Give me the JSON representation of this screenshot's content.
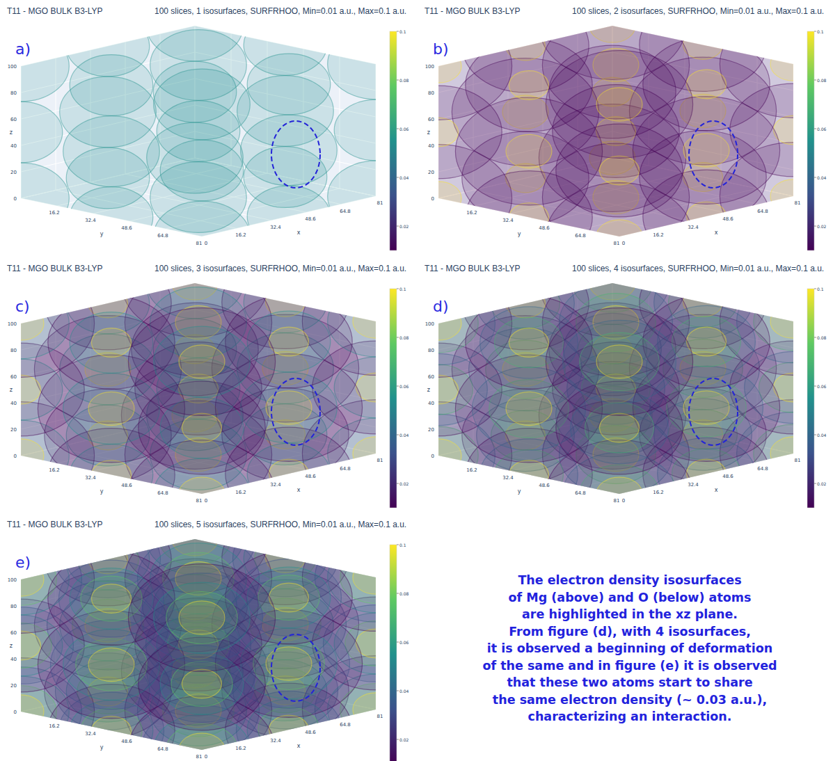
{
  "chart_data": [
    {
      "type": "isosurface",
      "panel": "a)",
      "title": "T11 - MGO BULK B3-LYP",
      "subtitle": "100 slices, 1 isosurfaces, SURFRHOO, Min=0.01 a.u., Max=0.1 a.u.",
      "xlabel": "x",
      "ylabel": "y",
      "zlabel": "z",
      "xlim": [
        0,
        81
      ],
      "xticks": [
        0,
        16.2,
        32.4,
        48.6,
        64.8,
        81
      ],
      "ylim": [
        0,
        81
      ],
      "yticks": [
        16.2,
        32.4,
        48.6,
        64.8,
        81
      ],
      "zlim": [
        0,
        100
      ],
      "zticks": [
        0,
        20,
        40,
        60,
        80,
        100
      ],
      "isosurface_levels": [
        0.055
      ],
      "colorbar": {
        "range": [
          0.01,
          0.1
        ],
        "ticks": [
          0.02,
          0.04,
          0.06,
          0.08,
          0.1
        ]
      }
    },
    {
      "type": "isosurface",
      "panel": "b)",
      "title": "T11 - MGO BULK B3-LYP",
      "subtitle": "100 slices, 2 isosurfaces, SURFRHOO, Min=0.01 a.u., Max=0.1 a.u.",
      "xlabel": "x",
      "ylabel": "y",
      "zlabel": "z",
      "xlim": [
        0,
        81
      ],
      "xticks": [
        0,
        16.2,
        32.4,
        48.6,
        64.8,
        81
      ],
      "ylim": [
        0,
        81
      ],
      "yticks": [
        16.2,
        32.4,
        48.6,
        64.8,
        81
      ],
      "zlim": [
        0,
        100
      ],
      "zticks": [
        0,
        20,
        40,
        60,
        80,
        100
      ],
      "isosurface_levels": [
        0.01,
        0.1
      ],
      "colorbar": {
        "range": [
          0.01,
          0.1
        ],
        "ticks": [
          0.02,
          0.04,
          0.06,
          0.08,
          0.1
        ]
      }
    },
    {
      "type": "isosurface",
      "panel": "c)",
      "title": "T11 - MGO BULK B3-LYP",
      "subtitle": "100 slices, 3 isosurfaces, SURFRHOO, Min=0.01 a.u., Max=0.1 a.u.",
      "xlabel": "x",
      "ylabel": "y",
      "zlabel": "z",
      "xlim": [
        0,
        81
      ],
      "xticks": [
        0,
        16.2,
        32.4,
        48.6,
        64.8,
        81
      ],
      "ylim": [
        0,
        81
      ],
      "yticks": [
        16.2,
        32.4,
        48.6,
        64.8,
        81
      ],
      "zlim": [
        0,
        100
      ],
      "zticks": [
        0,
        20,
        40,
        60,
        80,
        100
      ],
      "isosurface_levels": [
        0.01,
        0.055,
        0.1
      ],
      "colorbar": {
        "range": [
          0.01,
          0.1
        ],
        "ticks": [
          0.02,
          0.04,
          0.06,
          0.08,
          0.1
        ]
      }
    },
    {
      "type": "isosurface",
      "panel": "d)",
      "title": "T11 - MGO BULK B3-LYP",
      "subtitle": "100 slices, 4 isosurfaces, SURFRHOO, Min=0.01 a.u., Max=0.1 a.u.",
      "xlabel": "x",
      "ylabel": "y",
      "zlabel": "z",
      "xlim": [
        0,
        81
      ],
      "xticks": [
        0,
        16.2,
        32.4,
        48.6,
        64.8,
        81
      ],
      "ylim": [
        0,
        81
      ],
      "yticks": [
        16.2,
        32.4,
        48.6,
        64.8,
        81
      ],
      "zlim": [
        0,
        100
      ],
      "zticks": [
        0,
        20,
        40,
        60,
        80,
        100
      ],
      "isosurface_levels": [
        0.01,
        0.04,
        0.07,
        0.1
      ],
      "colorbar": {
        "range": [
          0.01,
          0.1
        ],
        "ticks": [
          0.02,
          0.04,
          0.06,
          0.08,
          0.1
        ]
      }
    },
    {
      "type": "isosurface",
      "panel": "e)",
      "title": "T11 - MGO BULK B3-LYP",
      "subtitle": "100 slices, 5 isosurfaces, SURFRHOO, Min=0.01 a.u., Max=0.1 a.u.",
      "xlabel": "x",
      "ylabel": "y",
      "zlabel": "z",
      "xlim": [
        0,
        81
      ],
      "xticks": [
        0,
        16.2,
        32.4,
        48.6,
        64.8,
        81
      ],
      "ylim": [
        0,
        81
      ],
      "yticks": [
        16.2,
        32.4,
        48.6,
        64.8,
        81
      ],
      "zlim": [
        0,
        100
      ],
      "zticks": [
        0,
        20,
        40,
        60,
        80,
        100
      ],
      "isosurface_levels": [
        0.01,
        0.0325,
        0.055,
        0.0775,
        0.1
      ],
      "colorbar": {
        "range": [
          0.01,
          0.1
        ],
        "ticks": [
          0.02,
          0.04,
          0.06,
          0.08,
          0.1
        ]
      }
    }
  ],
  "annotation": {
    "lines": [
      "The electron density isosurfaces",
      "of Mg (above) and O (below) atoms",
      "are highlighted in the xz plane.",
      "From figure (d), with 4 isosurfaces,",
      "it is observed a beginning of deformation",
      "of the same and in figure (e) it is observed",
      "that these two atoms start to share",
      "the same electron density (~ 0.03 a.u.),",
      "characterizing an interaction."
    ]
  }
}
